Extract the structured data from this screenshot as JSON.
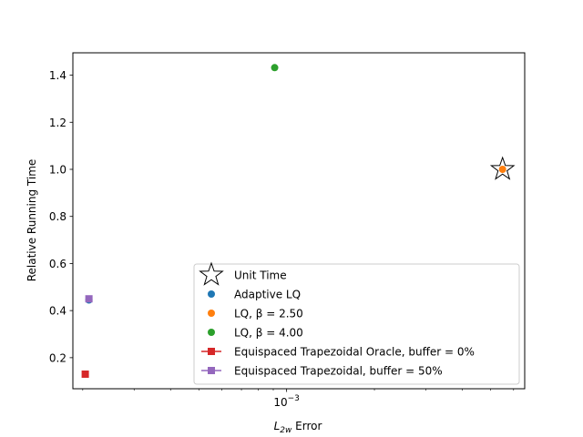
{
  "chart_data": {
    "type": "scatter",
    "title": "",
    "xlabel": "Error",
    "xlabel_math": {
      "base": "L",
      "sub": "2w"
    },
    "ylabel": "Relative Running Time",
    "x_scale": "log",
    "xlim": [
      0.000185,
      0.00655
    ],
    "ylim": [
      0.068,
      1.495
    ],
    "x_major_tick_value": 0.001,
    "x_major_tick_label": {
      "base": "10",
      "exp": "−3"
    },
    "x_minor_tick_values": [
      0.0002,
      0.0003,
      0.0004,
      0.0005,
      0.0006,
      0.0007,
      0.0008,
      0.0009,
      0.002,
      0.003,
      0.004,
      0.005,
      0.006
    ],
    "y_ticks": [
      0.2,
      0.4,
      0.6,
      0.8,
      1.0,
      1.2,
      1.4
    ],
    "y_tick_labels": [
      "0.2",
      "0.4",
      "0.6",
      "0.8",
      "1.0",
      "1.2",
      "1.4"
    ],
    "grid": false,
    "legend_position": "lower-right",
    "series": [
      {
        "name": "Unit Time",
        "marker": "star",
        "color": "#000000",
        "line": false,
        "points": [
          {
            "x": 0.0055,
            "y": 1.0
          }
        ]
      },
      {
        "name": "Adaptive LQ",
        "marker": "circle",
        "color": "#1f77b4",
        "line": false,
        "points": [
          {
            "x": 0.00021,
            "y": 0.445
          }
        ]
      },
      {
        "name": "LQ, β = 2.50",
        "marker": "circle",
        "color": "#ff7f0e",
        "line": false,
        "points": [
          {
            "x": 0.0055,
            "y": 1.0
          }
        ]
      },
      {
        "name": "LQ, β = 4.00",
        "marker": "circle",
        "color": "#2ca02c",
        "line": false,
        "points": [
          {
            "x": 0.00091,
            "y": 1.432
          }
        ]
      },
      {
        "name": "Equispaced Trapezoidal Oracle, buffer = 0%",
        "marker": "square",
        "color": "#d62728",
        "line": true,
        "points": [
          {
            "x": 0.000204,
            "y": 0.13
          }
        ]
      },
      {
        "name": "Equispaced Trapezoidal, buffer = 50%",
        "marker": "square",
        "color": "#9467bd",
        "line": true,
        "points": [
          {
            "x": 0.00021,
            "y": 0.45
          }
        ]
      }
    ]
  }
}
